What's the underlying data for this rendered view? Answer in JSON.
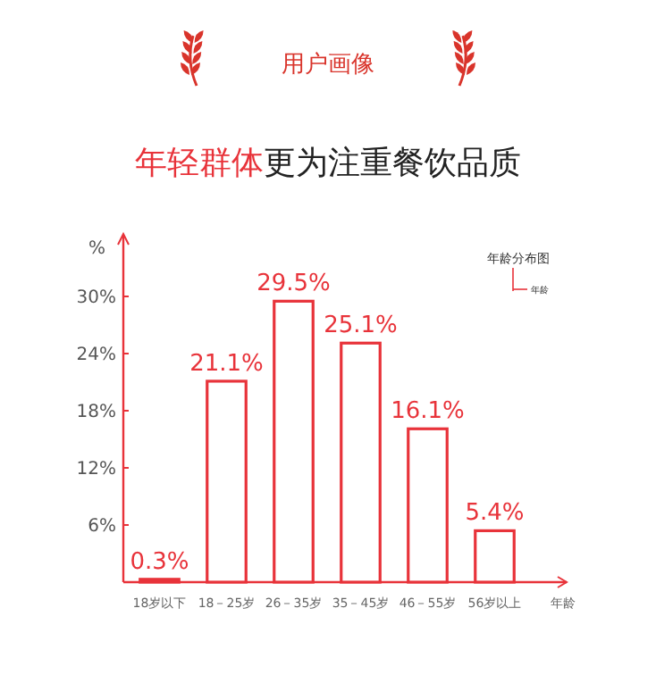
{
  "chart_data": {
    "type": "bar",
    "title": "用户画像",
    "annotations": [
      "年轻群体",
      "更为注重餐饮品质",
      "年龄分布图"
    ],
    "ylabel": "%",
    "xlabel": "年龄",
    "categories": [
      "18岁以下",
      "18－25岁",
      "26－35岁",
      "35－45岁",
      "46－55岁",
      "56岁以上"
    ],
    "values": [
      0.3,
      21.1,
      29.5,
      25.1,
      16.1,
      5.4
    ],
    "value_labels": [
      "0.3%",
      "21.1%",
      "29.5%",
      "25.1%",
      "16.1%",
      "5.4%"
    ],
    "color": "#e8333a",
    "ylim": [
      0,
      36
    ],
    "yticks": [
      {
        "value": 6,
        "label": "6%"
      },
      {
        "value": 12,
        "label": "12%"
      },
      {
        "value": 18,
        "label": "18%"
      },
      {
        "value": 24,
        "label": "24%"
      },
      {
        "value": 30,
        "label": "30%"
      }
    ]
  }
}
